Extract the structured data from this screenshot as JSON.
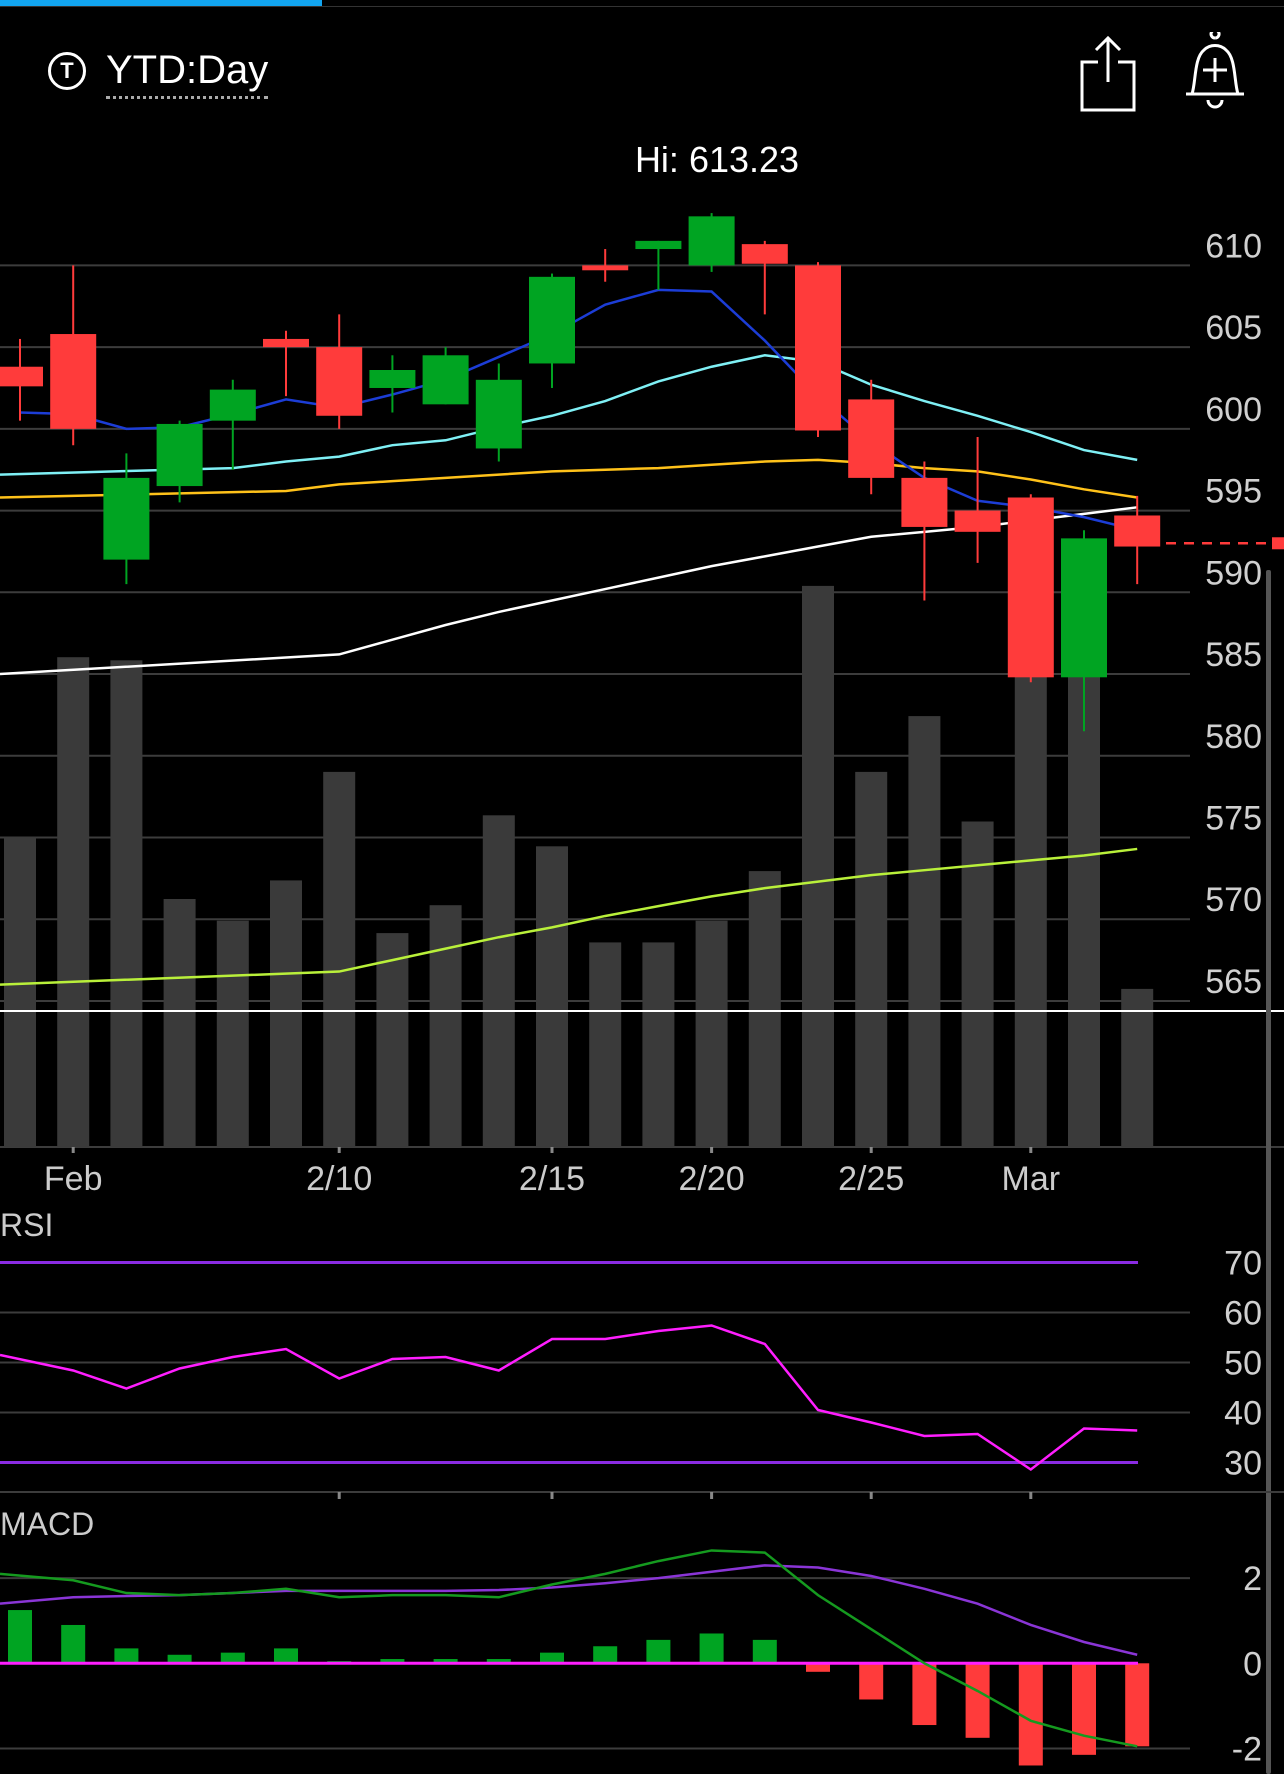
{
  "header": {
    "timeframe_icon": "T",
    "timeframe_label": "YTD:Day",
    "share_icon": "share-icon",
    "alert_icon": "add-alert-bell-icon"
  },
  "colors": {
    "up": "#00a422",
    "down": "#ff3b3b",
    "ema_short": "#1c3dd6",
    "ema_mid": "#7ff0f5",
    "ma_50": "#ffc21a",
    "ma_100": "#ffffff",
    "ma_200": "#b9f03a",
    "volume": "#3a3a3a",
    "rsi_line": "#ff1eff",
    "rsi_bands": "#8a2be2",
    "macd_line": "#159a1f",
    "signal_line": "#8a35d6",
    "zero_line": "#ff1eff"
  },
  "chart_data": {
    "type": "candlestick",
    "hi_label": "Hi: 613.23",
    "price_ticks": [
      610,
      605,
      600,
      595,
      590,
      585,
      580,
      575,
      570,
      565
    ],
    "price_range": [
      562,
      614
    ],
    "current_price": 593,
    "x_labels": [
      {
        "label": "Feb",
        "index": 1
      },
      {
        "label": "2/10",
        "index": 6
      },
      {
        "label": "2/15",
        "index": 10
      },
      {
        "label": "2/20",
        "index": 13
      },
      {
        "label": "2/25",
        "index": 16
      },
      {
        "label": "Mar",
        "index": 19
      }
    ],
    "candles": [
      {
        "o": 603.8,
        "h": 605.5,
        "l": 600.5,
        "c": 602.6
      },
      {
        "o": 605.8,
        "h": 610.0,
        "l": 599.0,
        "c": 600.0
      },
      {
        "o": 592.0,
        "h": 598.5,
        "l": 590.5,
        "c": 597.0
      },
      {
        "o": 596.5,
        "h": 600.5,
        "l": 595.5,
        "c": 600.3
      },
      {
        "o": 600.5,
        "h": 603.0,
        "l": 597.5,
        "c": 602.4
      },
      {
        "o": 605.5,
        "h": 606.0,
        "l": 602.0,
        "c": 605.0
      },
      {
        "o": 605.0,
        "h": 607.0,
        "l": 600.0,
        "c": 600.8
      },
      {
        "o": 602.5,
        "h": 604.5,
        "l": 601.0,
        "c": 603.6
      },
      {
        "o": 601.5,
        "h": 605.0,
        "l": 601.5,
        "c": 604.5
      },
      {
        "o": 598.8,
        "h": 604.0,
        "l": 598.0,
        "c": 603.0
      },
      {
        "o": 604.0,
        "h": 609.5,
        "l": 602.5,
        "c": 609.3
      },
      {
        "o": 610.0,
        "h": 611.0,
        "l": 609.0,
        "c": 609.7
      },
      {
        "o": 611.0,
        "h": 611.5,
        "l": 608.5,
        "c": 611.5
      },
      {
        "o": 610.0,
        "h": 613.2,
        "l": 609.6,
        "c": 613.0
      },
      {
        "o": 611.3,
        "h": 611.5,
        "l": 607.0,
        "c": 610.1
      },
      {
        "o": 610.0,
        "h": 610.2,
        "l": 599.5,
        "c": 599.9
      },
      {
        "o": 601.8,
        "h": 603.0,
        "l": 596.0,
        "c": 597.0
      },
      {
        "o": 597.0,
        "h": 598.0,
        "l": 589.5,
        "c": 594.0
      },
      {
        "o": 595.0,
        "h": 599.5,
        "l": 591.8,
        "c": 593.7
      },
      {
        "o": 595.8,
        "h": 596.0,
        "l": 584.5,
        "c": 584.8
      },
      {
        "o": 584.8,
        "h": 593.8,
        "l": 581.5,
        "c": 593.3
      },
      {
        "o": 594.7,
        "h": 595.9,
        "l": 590.5,
        "c": 592.8
      }
    ],
    "ema_short": [
      601,
      600.9,
      600,
      600.1,
      600.9,
      601.8,
      601.3,
      602.1,
      603.0,
      604.4,
      605.8,
      607.6,
      608.5,
      608.4,
      605.4,
      602.0,
      599.2,
      597.0,
      595.6,
      595.2,
      594.6,
      593.8
    ],
    "ema_mid": [
      597.2,
      597.6,
      598.0,
      598.3,
      599.0,
      599.3,
      600.1,
      600.8,
      601.7,
      602.9,
      603.8,
      604.5,
      604.1,
      602.7,
      601.7,
      600.8,
      599.8,
      598.7,
      598.1
    ],
    "ma_50": [
      595.8,
      596.2,
      596.6,
      596.8,
      597.0,
      597.2,
      597.4,
      597.5,
      597.6,
      597.8,
      598.0,
      598.1,
      597.9,
      597.6,
      597.4,
      596.9,
      596.3,
      595.8
    ],
    "ma_100": [
      585.0,
      586.2,
      587.1,
      588.0,
      588.8,
      589.5,
      590.2,
      590.9,
      591.6,
      592.2,
      592.8,
      593.4,
      593.7,
      594.0,
      594.4,
      594.8,
      595.2
    ],
    "ma_200": [
      566.0,
      566.8,
      567.5,
      568.2,
      568.9,
      569.5,
      570.2,
      570.8,
      571.4,
      571.9,
      572.3,
      572.7,
      573.0,
      573.3,
      573.6,
      573.9,
      574.3
    ],
    "volume": [
      1.0,
      1.58,
      1.57,
      0.8,
      0.73,
      0.86,
      1.21,
      0.69,
      0.78,
      1.07,
      0.97,
      0.66,
      0.66,
      0.73,
      0.89,
      1.81,
      1.21,
      1.39,
      1.05,
      1.75,
      1.91,
      0.51
    ],
    "rsi": {
      "label": "RSI",
      "ticks": [
        70,
        60,
        50,
        40,
        30
      ],
      "range": [
        27.5,
        72.5
      ],
      "values": [
        51.5,
        48.4,
        44.8,
        48.8,
        51.1,
        52.7,
        46.8,
        50.7,
        51.1,
        48.4,
        54.7,
        54.7,
        56.3,
        57.4,
        53.7,
        40.5,
        38.0,
        35.3,
        35.7,
        28.6,
        36.8,
        36.4
      ]
    },
    "macd": {
      "label": "MACD",
      "ticks": [
        2,
        0,
        -2
      ],
      "range": [
        -2.6,
        3.6
      ],
      "macd_line": [
        2.1,
        1.95,
        1.65,
        1.6,
        1.65,
        1.75,
        1.55,
        1.6,
        1.6,
        1.55,
        1.85,
        2.1,
        2.4,
        2.65,
        2.6,
        1.6,
        0.8,
        0.0,
        -0.65,
        -1.35,
        -1.7,
        -1.95
      ],
      "signal_line": [
        1.4,
        1.55,
        1.58,
        1.6,
        1.65,
        1.7,
        1.7,
        1.7,
        1.7,
        1.72,
        1.78,
        1.88,
        2.0,
        2.15,
        2.3,
        2.25,
        2.05,
        1.75,
        1.4,
        0.9,
        0.5,
        0.2
      ],
      "histogram": [
        1.25,
        0.9,
        0.35,
        0.2,
        0.25,
        0.35,
        0.05,
        0.1,
        0.1,
        0.1,
        0.25,
        0.4,
        0.55,
        0.7,
        0.55,
        -0.2,
        -0.85,
        -1.45,
        -1.75,
        -2.4,
        -2.15,
        -1.95
      ]
    }
  }
}
